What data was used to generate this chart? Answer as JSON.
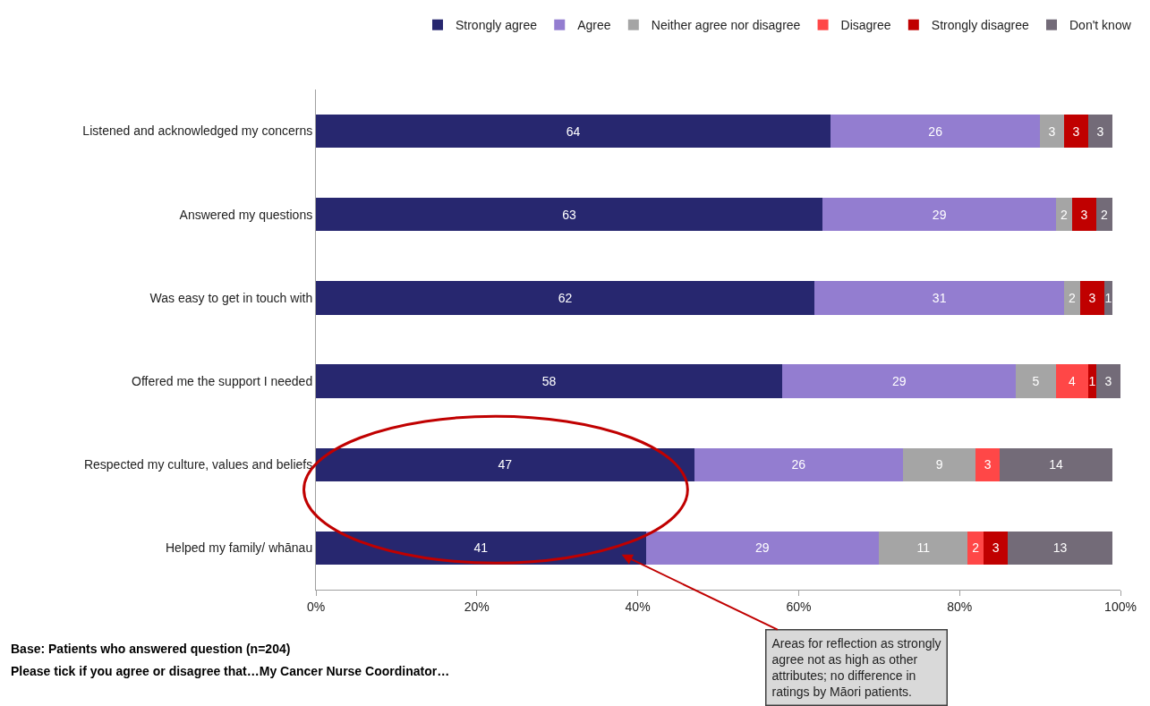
{
  "chart_data": {
    "type": "bar",
    "orientation": "horizontal",
    "stacked": true,
    "categories": [
      "Listened and acknowledged my concerns",
      "Answered my questions",
      "Was easy to get in touch with",
      "Offered me the support I needed",
      "Respected my culture, values and beliefs",
      "Helped my family/ whānau"
    ],
    "series": [
      {
        "name": "Strongly agree",
        "color": "#27276f",
        "values": [
          64,
          63,
          62,
          58,
          47,
          41
        ]
      },
      {
        "name": "Agree",
        "color": "#937dd0",
        "values": [
          26,
          29,
          31,
          29,
          26,
          29
        ]
      },
      {
        "name": "Neither agree nor disagree",
        "color": "#a5a5a5",
        "values": [
          3,
          2,
          2,
          5,
          9,
          11
        ]
      },
      {
        "name": "Disagree",
        "color": "#ff4747",
        "values": [
          null,
          null,
          null,
          4,
          3,
          2
        ]
      },
      {
        "name": "Strongly disagree",
        "color": "#c00000",
        "values": [
          3,
          3,
          3,
          1,
          null,
          3
        ]
      },
      {
        "name": "Don't know",
        "color": "#736b78",
        "values": [
          3,
          2,
          1,
          3,
          14,
          13
        ]
      }
    ],
    "xlim": [
      0,
      100
    ],
    "xticks": [
      {
        "value": 0,
        "label": "0%"
      },
      {
        "value": 20,
        "label": "20%"
      },
      {
        "value": 40,
        "label": "40%"
      },
      {
        "value": 60,
        "label": "60%"
      },
      {
        "value": 80,
        "label": "80%"
      },
      {
        "value": 100,
        "label": "100%"
      }
    ],
    "data_labels": true,
    "legend": "top right",
    "annotations": [
      "Base: Patients who answered question (n=204)",
      "Please tick if you agree or disagree that…My Cancer Nurse Coordinator…",
      "Areas for reflection as strongly\nagree not as high as other\nattributes; no difference in\nratings by Māori patients."
    ]
  }
}
